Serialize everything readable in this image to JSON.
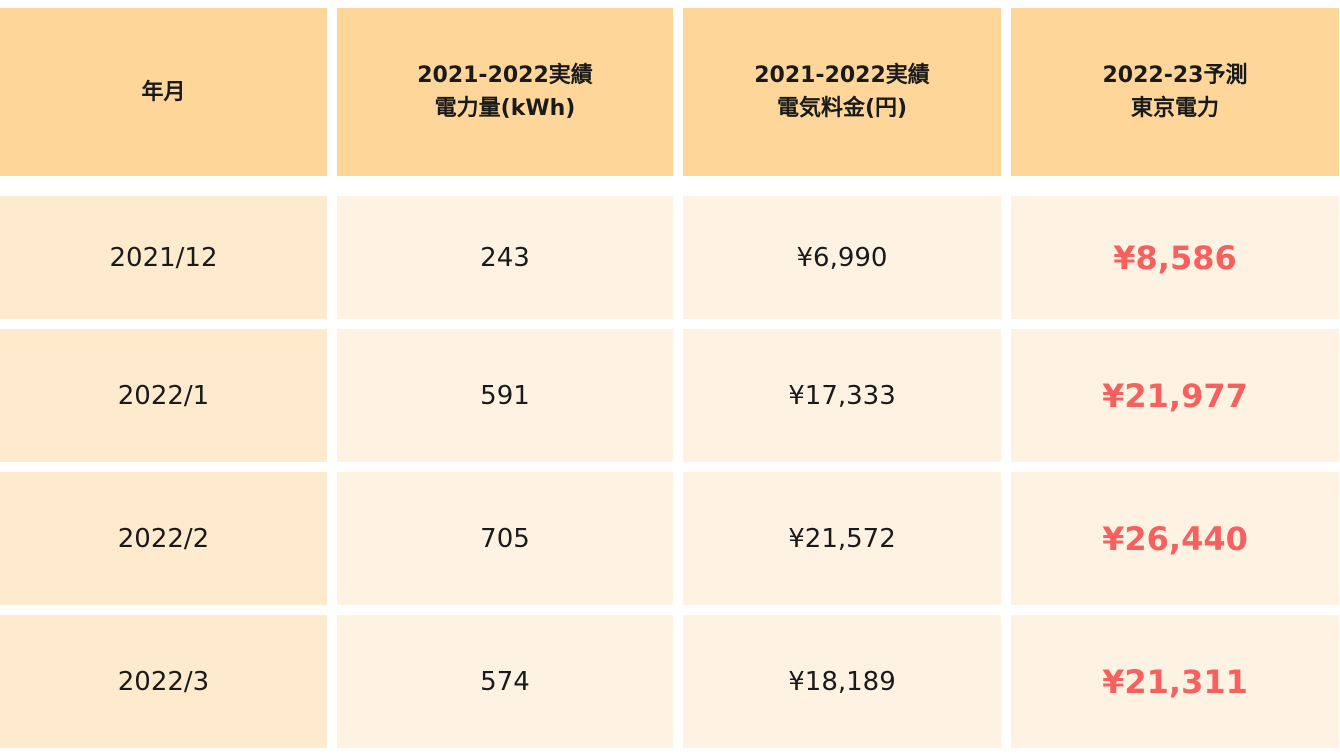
{
  "table": {
    "headers": [
      {
        "lines": [
          "年月"
        ]
      },
      {
        "lines": [
          "2021-2022実績",
          "電力量(kWh)"
        ]
      },
      {
        "lines": [
          "2021-2022実績",
          "電気料金(円)"
        ]
      },
      {
        "lines": [
          "2022-23予測",
          "東京電力"
        ]
      }
    ],
    "rows": [
      {
        "month": "2021/12",
        "kwh": "243",
        "cost": "¥6,990",
        "forecast": "¥8,586"
      },
      {
        "month": "2022/1",
        "kwh": "591",
        "cost": "¥17,333",
        "forecast": "¥21,977"
      },
      {
        "month": "2022/2",
        "kwh": "705",
        "cost": "¥21,572",
        "forecast": "¥26,440"
      },
      {
        "month": "2022/3",
        "kwh": "574",
        "cost": "¥18,189",
        "forecast": "¥21,311"
      }
    ]
  },
  "colors": {
    "header_bg": "#fed699",
    "month_bg": "#feeacc",
    "data_bg": "#fef3e2",
    "forecast_text": "#f6605f"
  }
}
